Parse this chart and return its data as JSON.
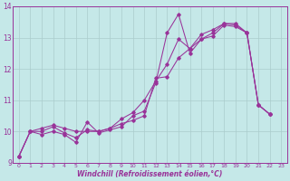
{
  "xlabel": "Windchill (Refroidissement éolien,°C)",
  "bg_color": "#c5e8e8",
  "grid_color": "#aacccc",
  "line_color": "#993399",
  "xlim": [
    -0.5,
    23.5
  ],
  "ylim": [
    9,
    14
  ],
  "yticks": [
    9,
    10,
    11,
    12,
    13,
    14
  ],
  "xticks": [
    0,
    1,
    2,
    3,
    4,
    5,
    6,
    7,
    8,
    9,
    10,
    11,
    12,
    13,
    14,
    15,
    16,
    17,
    18,
    19,
    20,
    21,
    22,
    23
  ],
  "series": [
    [
      9.2,
      10.0,
      9.9,
      10.0,
      9.9,
      9.65,
      10.3,
      9.95,
      10.05,
      10.15,
      10.5,
      10.65,
      11.55,
      13.15,
      13.75,
      12.5,
      12.95,
      13.05,
      13.4,
      13.35,
      13.15,
      10.85,
      10.55
    ],
    [
      9.2,
      10.0,
      10.0,
      10.15,
      9.95,
      9.8,
      10.05,
      10.0,
      10.1,
      10.25,
      10.35,
      10.5,
      11.7,
      11.75,
      12.35,
      12.65,
      12.95,
      13.15,
      13.45,
      13.4,
      13.15,
      10.85,
      10.55
    ],
    [
      9.2,
      10.0,
      10.1,
      10.2,
      10.1,
      10.0,
      10.0,
      10.0,
      10.1,
      10.4,
      10.6,
      11.0,
      11.6,
      12.15,
      12.95,
      12.65,
      13.1,
      13.25,
      13.45,
      13.45,
      13.15,
      10.85,
      10.55
    ]
  ]
}
